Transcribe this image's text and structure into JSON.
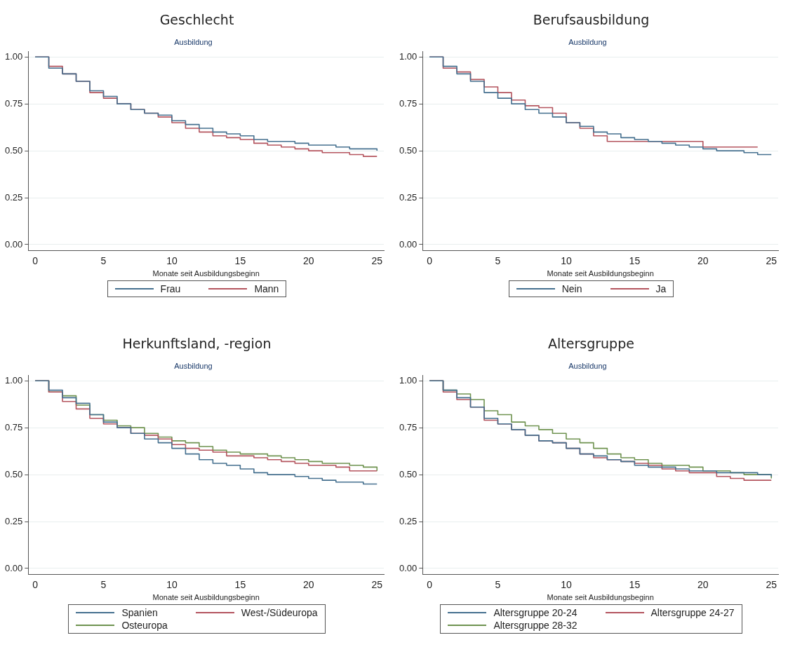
{
  "chart_data": [
    {
      "type": "step",
      "title": "Geschlecht",
      "subtitle": "Ausbildung",
      "xlabel": "Monate seit Ausbildungsbeginn",
      "x": [
        0,
        1,
        2,
        3,
        4,
        5,
        6,
        7,
        8,
        9,
        10,
        11,
        12,
        13,
        14,
        15,
        16,
        17,
        18,
        19,
        20,
        21,
        22,
        23,
        24,
        25
      ],
      "xlim": [
        -0.5,
        25.5
      ],
      "ylim": [
        -0.03,
        1.03
      ],
      "xticks": [
        0,
        5,
        10,
        15,
        20,
        25
      ],
      "yticks": [
        {
          "value": 0,
          "label": "0.00"
        },
        {
          "value": 0.25,
          "label": "0.25"
        },
        {
          "value": 0.5,
          "label": "0.50"
        },
        {
          "value": 0.75,
          "label": "0.75"
        },
        {
          "value": 1,
          "label": "1.00"
        }
      ],
      "grid": "y",
      "legend": "bottom",
      "series": [
        {
          "name": "Frau",
          "color": "#45708f",
          "values": [
            1,
            0.94,
            0.91,
            0.87,
            0.82,
            0.79,
            0.75,
            0.72,
            0.7,
            0.69,
            0.66,
            0.64,
            0.62,
            0.6,
            0.59,
            0.58,
            0.56,
            0.55,
            0.55,
            0.54,
            0.53,
            0.53,
            0.52,
            0.51,
            0.51,
            0.5
          ]
        },
        {
          "name": "Mann",
          "color": "#b4545e",
          "values": [
            1,
            0.95,
            0.91,
            0.87,
            0.81,
            0.78,
            0.75,
            0.72,
            0.7,
            0.68,
            0.65,
            0.62,
            0.6,
            0.58,
            0.57,
            0.56,
            0.54,
            0.53,
            0.52,
            0.51,
            0.5,
            0.49,
            0.49,
            0.48,
            0.47,
            0.47
          ]
        }
      ]
    },
    {
      "type": "step",
      "title": "Berufsausbildung",
      "subtitle": "Ausbildung",
      "xlabel": "Monate seit Ausbildungsbeginn",
      "x": [
        0,
        1,
        2,
        3,
        4,
        5,
        6,
        7,
        8,
        9,
        10,
        11,
        12,
        13,
        14,
        15,
        16,
        17,
        18,
        19,
        20,
        21,
        22,
        23,
        24,
        25
      ],
      "xlim": [
        -0.5,
        25.5
      ],
      "ylim": [
        -0.03,
        1.03
      ],
      "xticks": [
        0,
        5,
        10,
        15,
        20,
        25
      ],
      "yticks": [
        {
          "value": 0,
          "label": "0.00"
        },
        {
          "value": 0.25,
          "label": "0.25"
        },
        {
          "value": 0.5,
          "label": "0.50"
        },
        {
          "value": 0.75,
          "label": "0.75"
        },
        {
          "value": 1,
          "label": "1.00"
        }
      ],
      "grid": "y",
      "legend": "bottom",
      "series": [
        {
          "name": "Nein",
          "color": "#45708f",
          "values": [
            1,
            0.95,
            0.91,
            0.87,
            0.81,
            0.78,
            0.75,
            0.72,
            0.7,
            0.68,
            0.65,
            0.63,
            0.6,
            0.59,
            0.57,
            0.56,
            0.55,
            0.54,
            0.53,
            0.52,
            0.51,
            0.5,
            0.5,
            0.49,
            0.48,
            0.48
          ]
        },
        {
          "name": "Ja",
          "color": "#b4545e",
          "x": [
            0,
            1,
            2,
            3,
            4,
            5,
            6,
            7,
            8,
            9,
            10,
            11,
            12,
            13,
            14,
            15,
            16,
            17,
            18,
            19,
            20,
            21,
            22,
            23,
            24
          ],
          "values": [
            1,
            0.94,
            0.92,
            0.88,
            0.84,
            0.81,
            0.77,
            0.74,
            0.73,
            0.7,
            0.65,
            0.62,
            0.58,
            0.55,
            0.55,
            0.55,
            0.55,
            0.55,
            0.55,
            0.55,
            0.52,
            0.52,
            0.52,
            0.52,
            0.52
          ]
        }
      ]
    },
    {
      "type": "step",
      "title": "Herkunftsland, -region",
      "subtitle": "Ausbildung",
      "xlabel": "Monate seit Ausbildungsbeginn",
      "x": [
        0,
        1,
        2,
        3,
        4,
        5,
        6,
        7,
        8,
        9,
        10,
        11,
        12,
        13,
        14,
        15,
        16,
        17,
        18,
        19,
        20,
        21,
        22,
        23,
        24,
        25
      ],
      "xlim": [
        -0.5,
        25.5
      ],
      "ylim": [
        -0.03,
        1.03
      ],
      "xticks": [
        0,
        5,
        10,
        15,
        20,
        25
      ],
      "yticks": [
        {
          "value": 0,
          "label": "0.00"
        },
        {
          "value": 0.25,
          "label": "0.25"
        },
        {
          "value": 0.5,
          "label": "0.50"
        },
        {
          "value": 0.75,
          "label": "0.75"
        },
        {
          "value": 1,
          "label": "1.00"
        }
      ],
      "grid": "y",
      "legend": "bottom",
      "series": [
        {
          "name": "Spanien",
          "color": "#45708f",
          "values": [
            1,
            0.95,
            0.91,
            0.88,
            0.82,
            0.78,
            0.75,
            0.72,
            0.69,
            0.67,
            0.64,
            0.61,
            0.58,
            0.56,
            0.55,
            0.53,
            0.51,
            0.5,
            0.5,
            0.49,
            0.48,
            0.47,
            0.46,
            0.46,
            0.45,
            0.45
          ]
        },
        {
          "name": "West-/Südeuropa",
          "color": "#b4545e",
          "values": [
            1,
            0.94,
            0.89,
            0.85,
            0.8,
            0.77,
            0.75,
            0.72,
            0.71,
            0.69,
            0.66,
            0.64,
            0.63,
            0.62,
            0.6,
            0.6,
            0.59,
            0.58,
            0.57,
            0.56,
            0.55,
            0.55,
            0.54,
            0.52,
            0.52,
            0.52
          ]
        },
        {
          "name": "Osteuropa",
          "color": "#6f9350",
          "values": [
            1,
            0.94,
            0.92,
            0.87,
            0.82,
            0.79,
            0.76,
            0.75,
            0.72,
            0.7,
            0.68,
            0.67,
            0.65,
            0.63,
            0.62,
            0.61,
            0.61,
            0.6,
            0.59,
            0.58,
            0.57,
            0.56,
            0.56,
            0.55,
            0.54,
            0.52
          ]
        }
      ]
    },
    {
      "type": "step",
      "title": "Altersgruppe",
      "subtitle": "Ausbildung",
      "xlabel": "Monate seit Ausbildungsbeginn",
      "x": [
        0,
        1,
        2,
        3,
        4,
        5,
        6,
        7,
        8,
        9,
        10,
        11,
        12,
        13,
        14,
        15,
        16,
        17,
        18,
        19,
        20,
        21,
        22,
        23,
        24,
        25
      ],
      "xlim": [
        -0.5,
        25.5
      ],
      "ylim": [
        -0.03,
        1.03
      ],
      "xticks": [
        0,
        5,
        10,
        15,
        20,
        25
      ],
      "yticks": [
        {
          "value": 0,
          "label": "0.00"
        },
        {
          "value": 0.25,
          "label": "0.25"
        },
        {
          "value": 0.5,
          "label": "0.50"
        },
        {
          "value": 0.75,
          "label": "0.75"
        },
        {
          "value": 1,
          "label": "1.00"
        }
      ],
      "grid": "y",
      "legend": "bottom",
      "series": [
        {
          "name": "Altersgruppe 20-24",
          "color": "#45708f",
          "values": [
            1,
            0.95,
            0.91,
            0.86,
            0.8,
            0.77,
            0.74,
            0.71,
            0.68,
            0.67,
            0.64,
            0.61,
            0.6,
            0.58,
            0.57,
            0.55,
            0.54,
            0.54,
            0.53,
            0.52,
            0.52,
            0.51,
            0.51,
            0.51,
            0.5,
            0.49
          ]
        },
        {
          "name": "Altersgruppe 24-27",
          "color": "#b4545e",
          "values": [
            1,
            0.94,
            0.9,
            0.86,
            0.79,
            0.77,
            0.74,
            0.71,
            0.68,
            0.67,
            0.64,
            0.61,
            0.59,
            0.58,
            0.57,
            0.56,
            0.55,
            0.53,
            0.52,
            0.51,
            0.51,
            0.49,
            0.48,
            0.47,
            0.47,
            0.47
          ]
        },
        {
          "name": "Altersgruppe 28-32",
          "color": "#6f9350",
          "values": [
            1,
            0.95,
            0.93,
            0.9,
            0.84,
            0.82,
            0.78,
            0.76,
            0.74,
            0.72,
            0.69,
            0.67,
            0.64,
            0.61,
            0.59,
            0.58,
            0.56,
            0.55,
            0.55,
            0.54,
            0.52,
            0.52,
            0.51,
            0.5,
            0.5,
            0.48
          ]
        }
      ]
    }
  ]
}
